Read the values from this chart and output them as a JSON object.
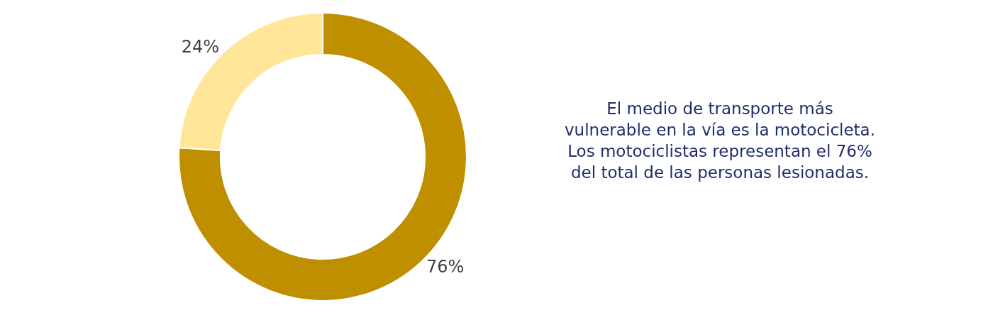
{
  "chart_data": {
    "type": "donut",
    "categories": [
      null,
      null
    ],
    "values": [
      76,
      24
    ],
    "colors": [
      "#bf8f00",
      "#ffe699"
    ],
    "value_labels": [
      "76%",
      "24%"
    ],
    "annotations": [
      "El medio de transporte más\nvulnerable en la vía es la motocicleta.\nLos motociclistas representan el 76%\ndel total de las personas lesionadas."
    ],
    "legend": false
  }
}
